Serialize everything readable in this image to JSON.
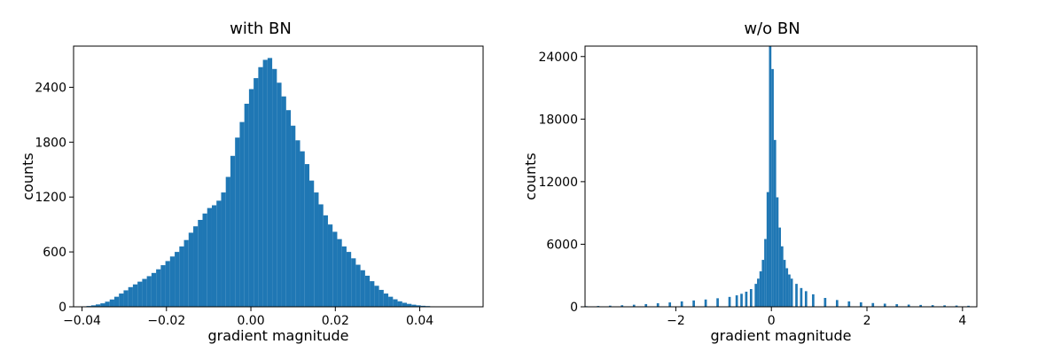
{
  "chart_data": [
    {
      "type": "bar",
      "title": "with BN",
      "xlabel": "gradient magnitude",
      "ylabel": "counts",
      "xlim": [
        -0.042,
        0.055
      ],
      "ylim": [
        0,
        2850
      ],
      "xticks": [
        -0.04,
        -0.02,
        0.0,
        0.02,
        0.04
      ],
      "xtick_labels": [
        "−0.04",
        "−0.02",
        "0.00",
        "0.02",
        "0.04"
      ],
      "yticks": [
        0,
        600,
        1200,
        1800,
        2400
      ],
      "ytick_labels": [
        "0",
        "600",
        "1200",
        "1800",
        "2400"
      ],
      "bar_color": "#1f77b4",
      "bin_width": 0.0011,
      "bins": [
        [
          -0.0395,
          5
        ],
        [
          -0.0384,
          9
        ],
        [
          -0.0373,
          16
        ],
        [
          -0.0362,
          26
        ],
        [
          -0.0351,
          38
        ],
        [
          -0.034,
          56
        ],
        [
          -0.0329,
          80
        ],
        [
          -0.0318,
          110
        ],
        [
          -0.0307,
          145
        ],
        [
          -0.0296,
          180
        ],
        [
          -0.0285,
          215
        ],
        [
          -0.0274,
          245
        ],
        [
          -0.0263,
          275
        ],
        [
          -0.0252,
          305
        ],
        [
          -0.0241,
          335
        ],
        [
          -0.023,
          370
        ],
        [
          -0.0219,
          410
        ],
        [
          -0.0208,
          455
        ],
        [
          -0.0197,
          500
        ],
        [
          -0.0186,
          550
        ],
        [
          -0.0175,
          600
        ],
        [
          -0.0164,
          660
        ],
        [
          -0.0153,
          730
        ],
        [
          -0.0142,
          810
        ],
        [
          -0.0131,
          880
        ],
        [
          -0.012,
          950
        ],
        [
          -0.0109,
          1020
        ],
        [
          -0.0098,
          1080
        ],
        [
          -0.0087,
          1110
        ],
        [
          -0.0076,
          1160
        ],
        [
          -0.0065,
          1250
        ],
        [
          -0.0054,
          1420
        ],
        [
          -0.0043,
          1650
        ],
        [
          -0.0032,
          1850
        ],
        [
          -0.0021,
          2020
        ],
        [
          -0.001,
          2220
        ],
        [
          0.0001,
          2380
        ],
        [
          0.0012,
          2500
        ],
        [
          0.0023,
          2620
        ],
        [
          0.0034,
          2700
        ],
        [
          0.0045,
          2720
        ],
        [
          0.0056,
          2600
        ],
        [
          0.0067,
          2450
        ],
        [
          0.0078,
          2300
        ],
        [
          0.0089,
          2150
        ],
        [
          0.01,
          1980
        ],
        [
          0.0111,
          1820
        ],
        [
          0.0122,
          1700
        ],
        [
          0.0133,
          1560
        ],
        [
          0.0144,
          1380
        ],
        [
          0.0155,
          1250
        ],
        [
          0.0166,
          1120
        ],
        [
          0.0177,
          1000
        ],
        [
          0.0188,
          900
        ],
        [
          0.0199,
          820
        ],
        [
          0.021,
          740
        ],
        [
          0.0221,
          660
        ],
        [
          0.0232,
          600
        ],
        [
          0.0243,
          530
        ],
        [
          0.0254,
          460
        ],
        [
          0.0265,
          400
        ],
        [
          0.0276,
          340
        ],
        [
          0.0287,
          280
        ],
        [
          0.0298,
          230
        ],
        [
          0.0309,
          185
        ],
        [
          0.032,
          145
        ],
        [
          0.0331,
          110
        ],
        [
          0.0342,
          82
        ],
        [
          0.0353,
          60
        ],
        [
          0.0364,
          44
        ],
        [
          0.0375,
          32
        ],
        [
          0.0386,
          23
        ],
        [
          0.0397,
          16
        ],
        [
          0.0408,
          11
        ],
        [
          0.0419,
          8
        ],
        [
          0.043,
          5
        ],
        [
          0.0441,
          4
        ],
        [
          0.0452,
          3
        ],
        [
          0.0463,
          2
        ],
        [
          0.0474,
          1
        ]
      ]
    },
    {
      "type": "bar",
      "title": "w/o BN",
      "xlabel": "gradient magnitude",
      "ylabel": "counts",
      "xlim": [
        -3.9,
        4.3
      ],
      "ylim": [
        0,
        25000
      ],
      "xticks": [
        -2,
        0,
        2,
        4
      ],
      "xtick_labels": [
        "−2",
        "0",
        "2",
        "4"
      ],
      "yticks": [
        0,
        6000,
        12000,
        18000,
        24000
      ],
      "ytick_labels": [
        "0",
        "6000",
        "12000",
        "18000",
        "24000"
      ],
      "bar_color": "#1f77b4",
      "bin_width": 0.05,
      "bins": [
        [
          -3.875,
          60
        ],
        [
          -3.625,
          80
        ],
        [
          -3.375,
          110
        ],
        [
          -3.125,
          150
        ],
        [
          -2.875,
          200
        ],
        [
          -2.625,
          260
        ],
        [
          -2.375,
          340
        ],
        [
          -2.125,
          420
        ],
        [
          -1.875,
          520
        ],
        [
          -1.625,
          610
        ],
        [
          -1.375,
          700
        ],
        [
          -1.125,
          820
        ],
        [
          -0.875,
          950
        ],
        [
          -0.725,
          1100
        ],
        [
          -0.625,
          1250
        ],
        [
          -0.525,
          1450
        ],
        [
          -0.425,
          1700
        ],
        [
          -0.325,
          2200
        ],
        [
          -0.275,
          2700
        ],
        [
          -0.225,
          3400
        ],
        [
          -0.175,
          4500
        ],
        [
          -0.125,
          6500
        ],
        [
          -0.075,
          11000
        ],
        [
          -0.025,
          25500
        ],
        [
          0.025,
          22800
        ],
        [
          0.075,
          16000
        ],
        [
          0.125,
          10500
        ],
        [
          0.175,
          7600
        ],
        [
          0.225,
          5800
        ],
        [
          0.275,
          4500
        ],
        [
          0.325,
          3700
        ],
        [
          0.375,
          3100
        ],
        [
          0.425,
          2700
        ],
        [
          0.525,
          2200
        ],
        [
          0.625,
          1800
        ],
        [
          0.725,
          1500
        ],
        [
          0.875,
          1200
        ],
        [
          1.125,
          850
        ],
        [
          1.375,
          650
        ],
        [
          1.625,
          520
        ],
        [
          1.875,
          430
        ],
        [
          2.125,
          360
        ],
        [
          2.375,
          300
        ],
        [
          2.625,
          250
        ],
        [
          2.875,
          210
        ],
        [
          3.125,
          180
        ],
        [
          3.375,
          160
        ],
        [
          3.625,
          140
        ],
        [
          3.875,
          120
        ],
        [
          4.125,
          100
        ]
      ]
    }
  ]
}
